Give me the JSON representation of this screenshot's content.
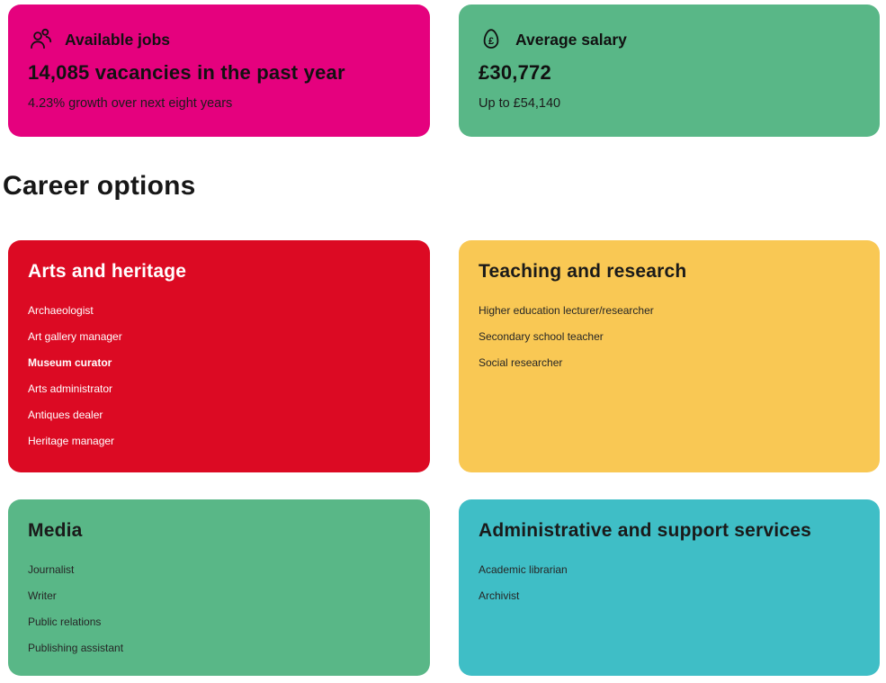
{
  "colors": {
    "jobs_card_bg": "#E5017E",
    "salary_card_bg": "#59B787",
    "arts_card_bg": "#DC0A23",
    "teaching_card_bg": "#F9C854",
    "media_card_bg": "#59B787",
    "admin_card_bg": "#3FBEC6",
    "text_dark": "#1a1a1a",
    "text_on_red": "#ffffff"
  },
  "stats": {
    "jobs": {
      "icon": "people-icon",
      "title": "Available jobs",
      "headline": "14,085 vacancies in the past year",
      "subtext": "4.23% growth over next eight years"
    },
    "salary": {
      "icon": "pound-money-icon",
      "title": "Average salary",
      "headline": "£30,772",
      "subtext": "Up to £54,140"
    }
  },
  "section_title": "Career options",
  "career_cards": [
    {
      "id": "arts-and-heritage",
      "title": "Arts and heritage",
      "theme": "red",
      "items": [
        {
          "label": "Archaeologist",
          "bold": false
        },
        {
          "label": "Art gallery manager",
          "bold": false
        },
        {
          "label": "Museum curator",
          "bold": true
        },
        {
          "label": "Arts administrator",
          "bold": false
        },
        {
          "label": "Antiques dealer",
          "bold": false
        },
        {
          "label": "Heritage manager",
          "bold": false
        }
      ]
    },
    {
      "id": "teaching-and-research",
      "title": "Teaching and research",
      "theme": "yellow",
      "items": [
        {
          "label": "Higher education lecturer/researcher",
          "bold": false
        },
        {
          "label": "Secondary school teacher",
          "bold": false
        },
        {
          "label": "Social researcher",
          "bold": false
        }
      ]
    },
    {
      "id": "media",
      "title": "Media",
      "theme": "green",
      "items": [
        {
          "label": "Journalist",
          "bold": false
        },
        {
          "label": "Writer",
          "bold": false
        },
        {
          "label": "Public relations",
          "bold": false
        },
        {
          "label": "Publishing assistant",
          "bold": false
        }
      ]
    },
    {
      "id": "administrative-and-support-services",
      "title": "Administrative and support services",
      "theme": "teal",
      "items": [
        {
          "label": "Academic librarian",
          "bold": false
        },
        {
          "label": "Archivist",
          "bold": false
        }
      ]
    }
  ]
}
